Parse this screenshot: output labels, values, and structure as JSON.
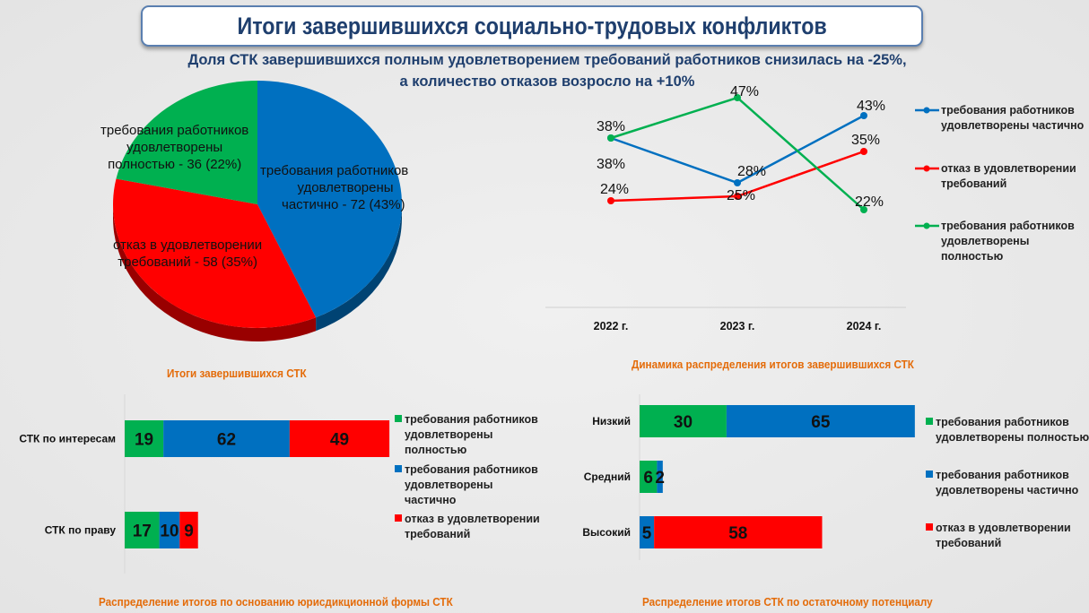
{
  "title": "Итоги завершившихся социально-трудовых конфликтов",
  "subtitle_line1": "Доля СТК завершившихся полным удовлетворением требований работников снизилась на -25%,",
  "subtitle_line2": "а количество отказов возросло на +10%",
  "colors": {
    "full": "#00b050",
    "partial": "#0070c0",
    "refusal": "#ff0000",
    "caption": "#e46c0a",
    "title": "#1f3f6e"
  },
  "chart_data": [
    {
      "type": "pie",
      "title": "Итоги завершившихся СТК",
      "style": "3d",
      "slices": [
        {
          "label": "требования работников удовлетворены частично - 72 (43%)",
          "value": 72,
          "percent": 43,
          "color": "#0070c0"
        },
        {
          "label": "отказ в удовлетворении требований - 58 (35%)",
          "value": 58,
          "percent": 35,
          "color": "#ff0000"
        },
        {
          "label": "требования работников удовлетворены полностью - 36 (22%)",
          "value": 36,
          "percent": 22,
          "color": "#00b050"
        }
      ]
    },
    {
      "type": "line",
      "title": "Динамика распределения итогов завершившихся СТК",
      "categories": [
        "2022 г.",
        "2023 г.",
        "2024 г."
      ],
      "ylim": [
        0,
        50
      ],
      "grid": false,
      "legend": "right",
      "series": [
        {
          "name": "требования работников удовлетворены частично",
          "values": [
            38,
            28,
            43
          ],
          "labels": [
            "38%",
            "28%",
            "43%"
          ],
          "color": "#0070c0"
        },
        {
          "name": "отказ в удовлетворении требований",
          "values": [
            24,
            25,
            35
          ],
          "labels": [
            "24%",
            "25%",
            "35%"
          ],
          "color": "#ff0000"
        },
        {
          "name": "требования работников удовлетворены полностью",
          "values": [
            38,
            47,
            22
          ],
          "labels": [
            "38%",
            "47%",
            "22%"
          ],
          "color": "#00b050"
        }
      ]
    },
    {
      "type": "bar",
      "orientation": "horizontal-stacked",
      "title": "Распределение итогов по основанию юрисдикционной формы СТК",
      "categories": [
        "СТК по интересам",
        "СТК по праву"
      ],
      "legend": "right",
      "series": [
        {
          "name": "требования работников удовлетворены полностью",
          "values": [
            19,
            17
          ],
          "color": "#00b050"
        },
        {
          "name": "требования работников удовлетворены частично",
          "values": [
            62,
            10
          ],
          "color": "#0070c0"
        },
        {
          "name": "отказ в удовлетворении требований",
          "values": [
            49,
            9
          ],
          "color": "#ff0000"
        }
      ]
    },
    {
      "type": "bar",
      "orientation": "horizontal-stacked",
      "title": "Распределение итогов СТК по остаточному потенциалу",
      "categories": [
        "Низкий",
        "Средний",
        "Высокий"
      ],
      "legend": "right",
      "series": [
        {
          "name": "требования работников удовлетворены полностью",
          "values": [
            30,
            6,
            0
          ],
          "color": "#00b050"
        },
        {
          "name": "требования работников удовлетворены частично",
          "values": [
            65,
            2,
            5
          ],
          "color": "#0070c0"
        },
        {
          "name": "отказ в удовлетворении требований",
          "values": [
            0,
            0,
            58
          ],
          "color": "#ff0000"
        }
      ]
    }
  ],
  "pie_labels": {
    "partial": [
      "требования работников",
      "удовлетворены",
      "частично - 72 (43%)"
    ],
    "refusal": [
      "отказ в удовлетворении",
      "требований - 58 (35%)"
    ],
    "full": [
      "требования работников",
      "удовлетворены",
      "полностью - 36 (22%)"
    ]
  },
  "line_legend": [
    [
      "требования работников",
      "удовлетворены частично"
    ],
    [
      "отказ в удовлетворении",
      "требований"
    ],
    [
      "требования работников",
      "удовлетворены",
      "полностью"
    ]
  ],
  "bar1_legend": [
    [
      "требования работников",
      "удовлетворены",
      "полностью"
    ],
    [
      "требования работников",
      "удовлетворены",
      "частично"
    ],
    [
      "отказ в удовлетворении",
      "требований"
    ]
  ],
  "bar2_legend": [
    [
      "требования работников",
      "удовлетворены полностью"
    ],
    [
      "требования работников",
      "удовлетворены частично"
    ],
    [
      "отказ в удовлетворении",
      "требований"
    ]
  ]
}
